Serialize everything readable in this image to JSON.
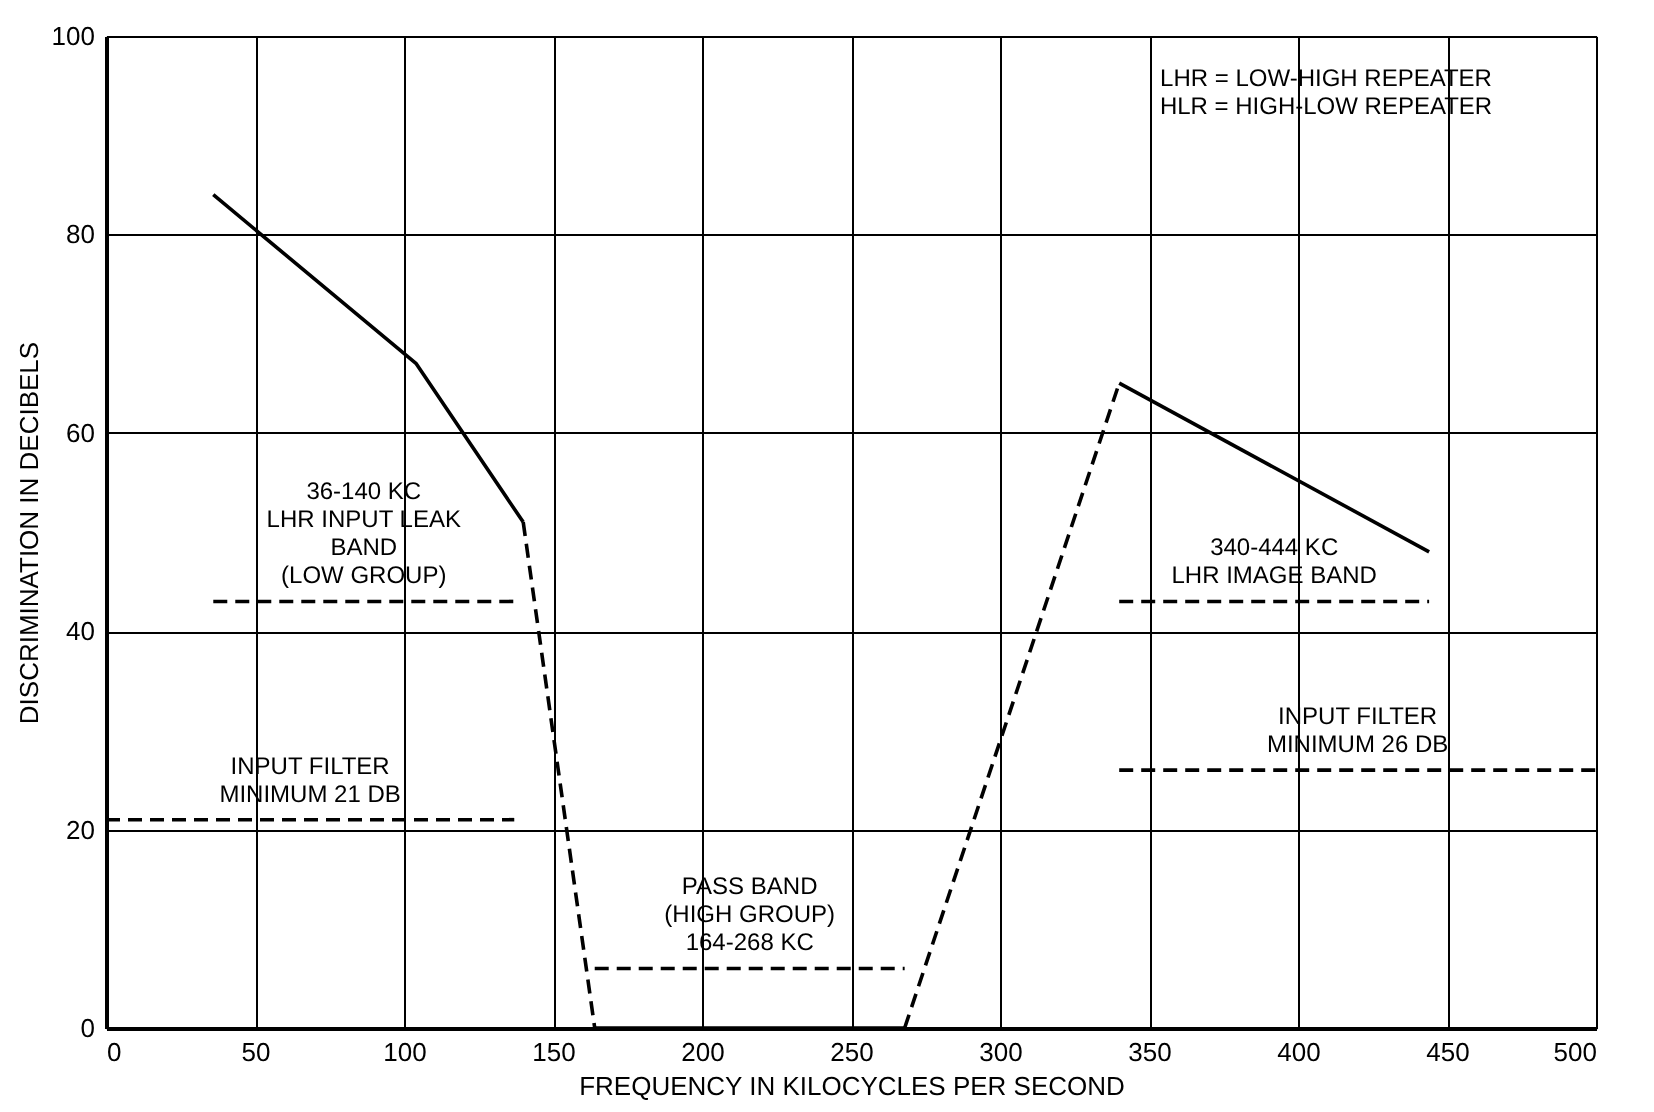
{
  "chart_data": {
    "type": "line",
    "xlabel": "FREQUENCY IN KILOCYCLES PER SECOND",
    "ylabel": "DISCRIMINATION IN DECIBELS",
    "xlim": [
      0,
      500
    ],
    "xticks": [
      0,
      50,
      100,
      150,
      200,
      250,
      300,
      350,
      400,
      450,
      500
    ],
    "ylim": [
      0,
      100
    ],
    "yticks": [
      0,
      20,
      40,
      60,
      80,
      100
    ],
    "grid": true,
    "series": [
      {
        "x": [
          36,
          104,
          140
        ],
        "values": [
          84,
          67,
          51
        ],
        "color": "#000000",
        "line_style": "solid"
      },
      {
        "x": [
          140,
          164
        ],
        "values": [
          51,
          0
        ],
        "color": "#000000",
        "line_style": "dashed"
      },
      {
        "x": [
          164,
          268
        ],
        "values": [
          0,
          0
        ],
        "color": "#000000",
        "line_style": "solid"
      },
      {
        "x": [
          268,
          340
        ],
        "values": [
          0,
          65
        ],
        "color": "#000000",
        "line_style": "dashed"
      },
      {
        "x": [
          340,
          444
        ],
        "values": [
          65,
          48
        ],
        "color": "#000000",
        "line_style": "solid"
      },
      {
        "name": "36-140 KC\nLHR INPUT LEAK\nBAND\n(LOW GROUP)",
        "x": [
          36,
          137
        ],
        "values": [
          43,
          43
        ],
        "color": "#000000",
        "line_style": "dashed"
      },
      {
        "name": "PASS BAND\n(HIGH GROUP)\n164-268 KC",
        "x": [
          164,
          268
        ],
        "values": [
          6,
          6
        ],
        "color": "#000000",
        "line_style": "dashed"
      },
      {
        "name": "340-444 KC\nLHR IMAGE BAND",
        "x": [
          340,
          444
        ],
        "values": [
          43,
          43
        ],
        "color": "#000000",
        "line_style": "dashed"
      },
      {
        "name": "INPUT FILTER\nMINIMUM 21 DB",
        "x": [
          0,
          137
        ],
        "values": [
          21,
          21
        ],
        "color": "#000000",
        "line_style": "dashed"
      },
      {
        "name": "INPUT FILTER\nMINIMUM 26 DB",
        "x": [
          340,
          500
        ],
        "values": [
          26,
          26
        ],
        "color": "#000000",
        "line_style": "dashed"
      }
    ],
    "annotations": [
      "LHR = LOW-HIGH REPEATER\nHLR = HIGH-LOW REPEATER"
    ]
  }
}
